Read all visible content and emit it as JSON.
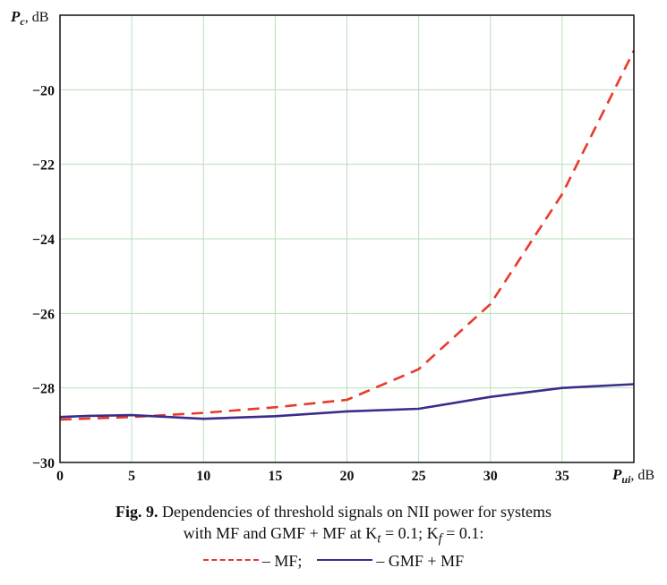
{
  "chart_data": {
    "type": "line",
    "title": "",
    "ylabel_symbol": "P",
    "ylabel_subscript": "c",
    "ylabel_unit": ", dB",
    "xlabel_symbol": "P",
    "xlabel_subscript": "ui",
    "xlabel_unit": ", dB",
    "xlim": [
      0,
      40
    ],
    "ylim": [
      -30,
      -18
    ],
    "x_ticks": [
      "0",
      "5",
      "10",
      "15",
      "20",
      "25",
      "30",
      "35"
    ],
    "y_ticks": [
      "−30",
      "−28",
      "−26",
      "−24",
      "−22",
      "−20"
    ],
    "grid": true,
    "series": [
      {
        "name": "MF",
        "style": "dashed",
        "color": "#e8392c",
        "x": [
          0,
          5,
          10,
          15,
          20,
          25,
          30,
          35,
          40
        ],
        "y": [
          -28.85,
          -28.78,
          -28.67,
          -28.52,
          -28.32,
          -27.5,
          -25.75,
          -22.8,
          -18.95
        ]
      },
      {
        "name": "GMF + MF",
        "style": "solid",
        "color": "#3a2d8c",
        "x": [
          0,
          2,
          5,
          10,
          15,
          20,
          25,
          30,
          35,
          40
        ],
        "y": [
          -28.78,
          -28.75,
          -28.73,
          -28.83,
          -28.76,
          -28.63,
          -28.56,
          -28.24,
          -28.0,
          -27.9
        ]
      }
    ]
  },
  "caption": {
    "fig_label": "Fig. 9.",
    "line1_rest": " Dependencies of threshold signals on NII power for systems",
    "line2": "with MF and GMF + MF at K",
    "line2_sub1": "t",
    "line2_mid": " = 0.1; K",
    "line2_sub2": "f",
    "line2_end": " = 0.1:",
    "legend_mf": "– MF;",
    "legend_gmf": "– GMF + MF"
  }
}
